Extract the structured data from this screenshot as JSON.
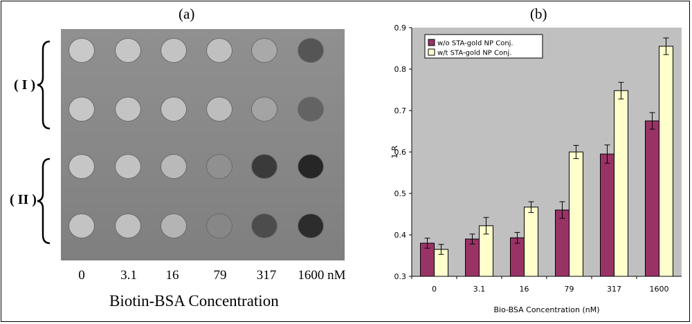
{
  "panel_a": {
    "label": "(a)",
    "group_labels": [
      "( I )",
      "( II )"
    ],
    "concentrations": [
      "0",
      "3.1",
      "16",
      "79",
      "317",
      "1600 nM"
    ],
    "xlabel": "Biotin-BSA Concentration",
    "dot_gray_levels": [
      [
        "#c9c9c9",
        "#c6c6c6",
        "#c3c3c3",
        "#c0c0c0",
        "#a9a9a9",
        "#555555"
      ],
      [
        "#c7c7c7",
        "#c4c4c4",
        "#c2c2c2",
        "#bdbdbd",
        "#a4a4a4",
        "#636363"
      ],
      [
        "#c6c6c6",
        "#c2c2c2",
        "#b9b9b9",
        "#909090",
        "#3a3a3a",
        "#262626"
      ],
      [
        "#c3c3c3",
        "#c0c0c0",
        "#b4b4b4",
        "#878787",
        "#4c4c4c",
        "#2c2c2c"
      ]
    ]
  },
  "panel_b": {
    "label": "(b)"
  },
  "chart_data": {
    "type": "bar",
    "title": "",
    "xlabel": "Bio-BSA Concentration (nM)",
    "ylabel": "1-R",
    "categories": [
      "0",
      "3.1",
      "16",
      "79",
      "317",
      "1600"
    ],
    "ylim": [
      0.3,
      0.9
    ],
    "yticks": [
      "0.3",
      "0.4",
      "0.5",
      "0.6",
      "0.7",
      "0.8",
      "0.9"
    ],
    "ytick_values": [
      0.3,
      0.4,
      0.5,
      0.6,
      0.7,
      0.8,
      0.9
    ],
    "grid": false,
    "legend_position": "top-left",
    "series": [
      {
        "name": "w/o STA-gold NP Conj.",
        "color": "#993366",
        "values": [
          0.38,
          0.39,
          0.393,
          0.46,
          0.595,
          0.675
        ],
        "errors": [
          0.012,
          0.012,
          0.013,
          0.02,
          0.022,
          0.02
        ]
      },
      {
        "name": "w/t STA-gold NP Conj.",
        "color": "#ffffcc",
        "values": [
          0.365,
          0.422,
          0.467,
          0.6,
          0.748,
          0.855
        ],
        "errors": [
          0.012,
          0.02,
          0.013,
          0.016,
          0.02,
          0.02
        ]
      }
    ]
  }
}
